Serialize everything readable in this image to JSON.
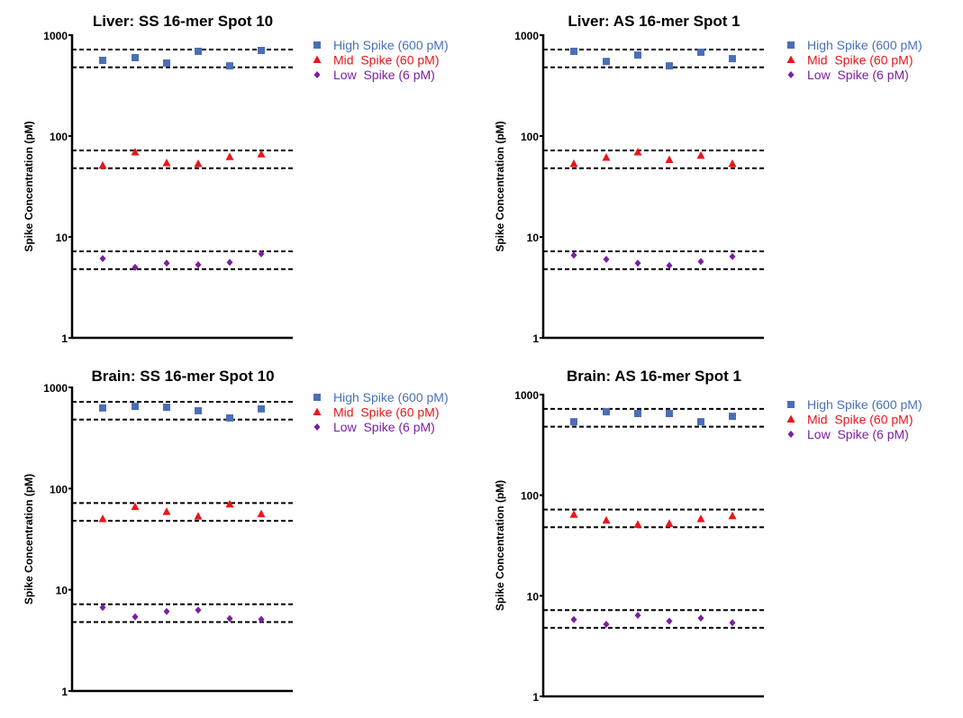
{
  "chart_data": [
    {
      "type": "scatter",
      "title": "Liver: SS 16-mer Spot 10",
      "ylabel": "Spike Concentration (pM)",
      "yscale": "log",
      "ylim": [
        1,
        1000
      ],
      "yticks": [
        "1",
        "10",
        "100",
        "1000"
      ],
      "reference_lines": [
        720,
        480,
        72,
        48,
        7.2,
        4.8
      ],
      "legend_position": "right",
      "series": [
        {
          "name": "High Spike (600 pM)",
          "marker": "square",
          "color": "#4a6fb5",
          "values": [
            562,
            598,
            529,
            691,
            496,
            705
          ]
        },
        {
          "name": "Mid  Spike (60 pM)",
          "marker": "triangle",
          "color": "#e8161b",
          "values": [
            51,
            69,
            54,
            53,
            62,
            66
          ]
        },
        {
          "name": "Low  Spike (6 pM)",
          "marker": "diamond",
          "color": "#7a1fa2",
          "values": [
            6.1,
            5.0,
            5.5,
            5.3,
            5.6,
            6.8
          ]
        }
      ]
    },
    {
      "type": "scatter",
      "title": "Liver: AS 16-mer Spot 1",
      "ylabel": "Spike Concentration (pM)",
      "yscale": "log",
      "ylim": [
        1,
        1000
      ],
      "yticks": [
        "1",
        "10",
        "100",
        "1000"
      ],
      "reference_lines": [
        720,
        480,
        72,
        48,
        7.2,
        4.8
      ],
      "legend_position": "right",
      "series": [
        {
          "name": "High Spike (600 pM)",
          "marker": "square",
          "color": "#4a6fb5",
          "values": [
            691,
            548,
            635,
            496,
            677,
            585
          ]
        },
        {
          "name": "Mid  Spike (60 pM)",
          "marker": "triangle",
          "color": "#e8161b",
          "values": [
            53,
            61,
            69,
            58,
            64,
            53
          ]
        },
        {
          "name": "Low  Spike (6 pM)",
          "marker": "diamond",
          "color": "#7a1fa2",
          "values": [
            6.6,
            6.0,
            5.5,
            5.2,
            5.7,
            6.4
          ]
        }
      ]
    },
    {
      "type": "scatter",
      "title": "Brain: SS 16-mer Spot 10",
      "ylabel": "Spike Concentration (pM)",
      "yscale": "log",
      "ylim": [
        1,
        1000
      ],
      "yticks": [
        "1",
        "10",
        "100",
        "1000"
      ],
      "reference_lines": [
        720,
        480,
        72,
        48,
        7.2,
        4.8
      ],
      "legend_position": "right",
      "series": [
        {
          "name": "High Spike (600 pM)",
          "marker": "square",
          "color": "#4a6fb5",
          "values": [
            626,
            649,
            637,
            588,
            499,
            613
          ]
        },
        {
          "name": "Mid  Spike (60 pM)",
          "marker": "triangle",
          "color": "#e8161b",
          "values": [
            50,
            66,
            59,
            53,
            70,
            56
          ]
        },
        {
          "name": "Low  Spike (6 pM)",
          "marker": "diamond",
          "color": "#7a1fa2",
          "values": [
            6.7,
            5.4,
            6.1,
            6.3,
            5.2,
            5.1
          ]
        }
      ]
    },
    {
      "type": "scatter",
      "title": "Brain: AS 16-mer Spot 1",
      "ylabel": "Spike Concentration (pM)",
      "yscale": "log",
      "ylim": [
        1,
        1000
      ],
      "yticks": [
        "1",
        "10",
        "100",
        "1000"
      ],
      "reference_lines": [
        720,
        480,
        72,
        48,
        7.2,
        4.8
      ],
      "legend_position": "right",
      "series": [
        {
          "name": "High Spike (600 pM)",
          "marker": "square",
          "color": "#4a6fb5",
          "values": [
            537,
            675,
            648,
            648,
            537,
            608
          ]
        },
        {
          "name": "Mid  Spike (60 pM)",
          "marker": "triangle",
          "color": "#e8161b",
          "values": [
            64,
            56,
            51,
            52,
            58,
            62
          ]
        },
        {
          "name": "Low  Spike (6 pM)",
          "marker": "diamond",
          "color": "#7a1fa2",
          "values": [
            5.8,
            5.2,
            6.4,
            5.6,
            6.0,
            5.4
          ]
        }
      ]
    }
  ]
}
